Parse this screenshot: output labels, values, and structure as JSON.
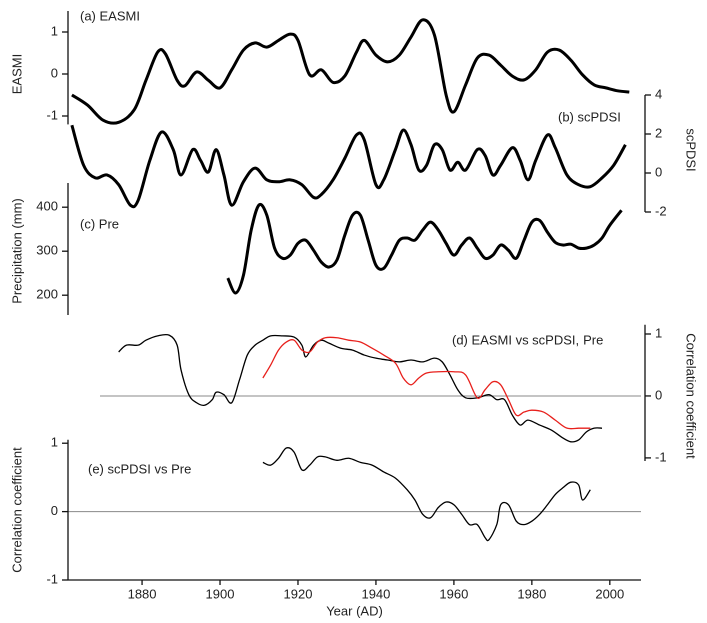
{
  "chart_data": [
    {
      "type": "line",
      "title": "(a) EASMI",
      "ylabel": "EASMI",
      "y_axis_side": "left",
      "color": "#000000",
      "xlim": [
        1861,
        2008
      ],
      "ylim": [
        -1.2,
        1.5
      ],
      "yticks": [
        -1,
        0,
        1
      ],
      "x": [
        1862,
        1866,
        1870,
        1874,
        1878,
        1881,
        1884,
        1886,
        1889,
        1891,
        1894,
        1897,
        1900,
        1903,
        1906,
        1909,
        1912,
        1915,
        1918,
        1920,
        1923,
        1926,
        1929,
        1932,
        1935,
        1937,
        1940,
        1943,
        1946,
        1949,
        1952,
        1955,
        1958,
        1960,
        1963,
        1966,
        1969,
        1972,
        1975,
        1978,
        1981,
        1984,
        1987,
        1990,
        1993,
        1996,
        1999,
        2002,
        2005
      ],
      "values": [
        -0.5,
        -0.74,
        -1.1,
        -1.15,
        -0.85,
        -0.15,
        0.52,
        0.48,
        -0.15,
        -0.28,
        0.05,
        -0.15,
        -0.33,
        0.1,
        0.57,
        0.74,
        0.64,
        0.8,
        0.95,
        0.8,
        -0.02,
        0.1,
        -0.2,
        -0.05,
        0.52,
        0.8,
        0.45,
        0.29,
        0.45,
        0.88,
        1.29,
        0.93,
        -0.5,
        -0.9,
        -0.26,
        0.38,
        0.45,
        0.21,
        -0.05,
        -0.14,
        0.1,
        0.52,
        0.57,
        0.33,
        -0.02,
        -0.26,
        -0.33,
        -0.4,
        -0.43
      ]
    },
    {
      "type": "line",
      "title": "(b) scPDSI",
      "ylabel": "scPDSI",
      "y_axis_side": "right",
      "color": "#000000",
      "xlim": [
        1861,
        2008
      ],
      "ylim": [
        -2,
        4
      ],
      "yticks": [
        -2,
        0,
        2,
        4
      ],
      "x": [
        1862,
        1865,
        1868,
        1871,
        1874,
        1877,
        1879,
        1882,
        1885,
        1888,
        1890,
        1893,
        1895,
        1897,
        1899,
        1901,
        1903,
        1906,
        1909,
        1912,
        1915,
        1918,
        1921,
        1924,
        1926,
        1929,
        1932,
        1935,
        1937,
        1940,
        1942,
        1945,
        1947,
        1949,
        1951,
        1953,
        1955,
        1957,
        1959,
        1961,
        1963,
        1966,
        1968,
        1970,
        1972,
        1975,
        1977,
        1979,
        1981,
        1984,
        1986,
        1989,
        1992,
        1995,
        1998,
        2001,
        2004
      ],
      "values": [
        2.45,
        0.4,
        -0.25,
        -0.1,
        -0.6,
        -1.65,
        -1.4,
        0.65,
        2.1,
        1.2,
        -0.1,
        1.2,
        0.65,
        0.05,
        1.2,
        -0.1,
        -1.65,
        -0.45,
        0.25,
        -0.35,
        -0.45,
        -0.35,
        -0.6,
        -1.25,
        -1.1,
        -0.35,
        0.75,
        1.95,
        1.7,
        -0.6,
        -0.35,
        1.2,
        2.2,
        1.45,
        0.15,
        0.4,
        1.45,
        1.2,
        0.15,
        0.55,
        0.15,
        1.2,
        0.9,
        -0.1,
        0.4,
        1.3,
        0.65,
        -0.35,
        0.65,
        1.95,
        1.3,
        -0.1,
        -0.6,
        -0.7,
        -0.25,
        0.4,
        1.45
      ]
    },
    {
      "type": "line",
      "title": "(c) Pre",
      "ylabel": "Precipitation (mm)",
      "y_axis_side": "left",
      "color": "#000000",
      "xlim": [
        1861,
        2008
      ],
      "ylim": [
        155,
        455
      ],
      "yticks": [
        200,
        300,
        400
      ],
      "x": [
        1902,
        1904,
        1906,
        1908,
        1910,
        1912,
        1914,
        1916,
        1918,
        1920,
        1922,
        1924,
        1926,
        1928,
        1930,
        1932,
        1934,
        1936,
        1938,
        1940,
        1942,
        1944,
        1946,
        1948,
        1950,
        1952,
        1954,
        1956,
        1958,
        1960,
        1962,
        1964,
        1966,
        1968,
        1970,
        1972,
        1974,
        1976,
        1978,
        1980,
        1982,
        1984,
        1986,
        1988,
        1990,
        1992,
        1994,
        1996,
        1998,
        2000,
        2003
      ],
      "values": [
        239,
        205,
        245,
        348,
        405,
        382,
        307,
        284,
        291,
        318,
        325,
        302,
        275,
        264,
        280,
        336,
        382,
        382,
        325,
        268,
        261,
        291,
        325,
        330,
        325,
        348,
        366,
        348,
        318,
        291,
        314,
        330,
        307,
        284,
        291,
        314,
        302,
        284,
        325,
        366,
        370,
        343,
        320,
        314,
        316,
        307,
        307,
        314,
        330,
        359,
        393
      ]
    },
    {
      "type": "line",
      "ylabel": "Correlation coefficient",
      "y_axis_side": "right",
      "zero_line": true,
      "xlim": [
        1861,
        2008
      ],
      "ylim": [
        -1.05,
        1.15
      ],
      "yticks": [
        -1,
        0,
        1
      ],
      "series": [
        {
          "name": "(d) EASMI vs scPDSI,",
          "color": "#000000",
          "x": [
            1874,
            1876,
            1879,
            1881,
            1884,
            1887,
            1889,
            1890,
            1892,
            1894,
            1896,
            1898,
            1899,
            1901,
            1903,
            1905,
            1907,
            1909,
            1911,
            1913,
            1916,
            1919,
            1921,
            1922,
            1924,
            1926,
            1928,
            1931,
            1934,
            1937,
            1940,
            1943,
            1946,
            1949,
            1952,
            1955,
            1957,
            1959,
            1961,
            1963,
            1966,
            1969,
            1971,
            1973,
            1975,
            1977,
            1979,
            1982,
            1985,
            1988,
            1990,
            1992,
            1994,
            1996,
            1998
          ],
          "values": [
            0.71,
            0.82,
            0.82,
            0.9,
            0.97,
            0.98,
            0.82,
            0.42,
            0.02,
            -0.11,
            -0.15,
            -0.06,
            0.06,
            0.02,
            -0.11,
            0.26,
            0.66,
            0.82,
            0.9,
            0.97,
            0.97,
            0.95,
            0.82,
            0.63,
            0.82,
            0.9,
            0.85,
            0.77,
            0.74,
            0.66,
            0.61,
            0.58,
            0.55,
            0.58,
            0.55,
            0.61,
            0.55,
            0.34,
            0.1,
            -0.03,
            -0.03,
            0.02,
            -0.06,
            -0.06,
            -0.31,
            -0.47,
            -0.39,
            -0.47,
            -0.55,
            -0.68,
            -0.74,
            -0.71,
            -0.58,
            -0.52,
            -0.52
          ]
        },
        {
          "name": "Pre",
          "color": "#e8201c",
          "x": [
            1911,
            1913,
            1915,
            1917,
            1919,
            1921,
            1923,
            1925,
            1927,
            1930,
            1933,
            1936,
            1939,
            1942,
            1945,
            1947,
            1949,
            1951,
            1953,
            1956,
            1960,
            1963,
            1966,
            1968,
            1970,
            1972,
            1974,
            1976,
            1978,
            1980,
            1983,
            1986,
            1989,
            1992,
            1995
          ],
          "values": [
            0.29,
            0.5,
            0.74,
            0.87,
            0.9,
            0.74,
            0.71,
            0.87,
            0.94,
            0.94,
            0.9,
            0.87,
            0.77,
            0.66,
            0.53,
            0.29,
            0.18,
            0.29,
            0.37,
            0.39,
            0.39,
            0.34,
            -0.03,
            0.1,
            0.23,
            0.18,
            -0.06,
            -0.31,
            -0.26,
            -0.23,
            -0.26,
            -0.39,
            -0.52,
            -0.52,
            -0.52
          ]
        }
      ]
    },
    {
      "type": "line",
      "title": "(e) scPDSI vs Pre",
      "ylabel": "Correlation coefficient",
      "y_axis_side": "left",
      "zero_line": true,
      "color": "#000000",
      "xlabel": "Year (AD)",
      "xlim": [
        1861,
        2008
      ],
      "xticks": [
        1880,
        1900,
        1920,
        1940,
        1960,
        1980,
        2000
      ],
      "ylim": [
        -1,
        1.05
      ],
      "yticks": [
        -1,
        0,
        1
      ],
      "x": [
        1911,
        1913,
        1915,
        1917,
        1919,
        1921,
        1923,
        1925,
        1927,
        1930,
        1933,
        1936,
        1939,
        1942,
        1945,
        1948,
        1950,
        1952,
        1954,
        1956,
        1958,
        1960,
        1962,
        1964,
        1966,
        1968,
        1969,
        1971,
        1972,
        1974,
        1976,
        1978,
        1980,
        1982,
        1984,
        1986,
        1988,
        1990,
        1992,
        1993,
        1995
      ],
      "values": [
        0.72,
        0.68,
        0.78,
        0.93,
        0.87,
        0.61,
        0.68,
        0.8,
        0.8,
        0.75,
        0.78,
        0.72,
        0.68,
        0.58,
        0.49,
        0.32,
        0.17,
        -0.04,
        -0.09,
        0.06,
        0.14,
        0.1,
        -0.04,
        -0.19,
        -0.19,
        -0.38,
        -0.41,
        -0.19,
        0.1,
        0.1,
        -0.14,
        -0.19,
        -0.14,
        -0.04,
        0.1,
        0.25,
        0.35,
        0.43,
        0.39,
        0.17,
        0.32
      ]
    }
  ]
}
